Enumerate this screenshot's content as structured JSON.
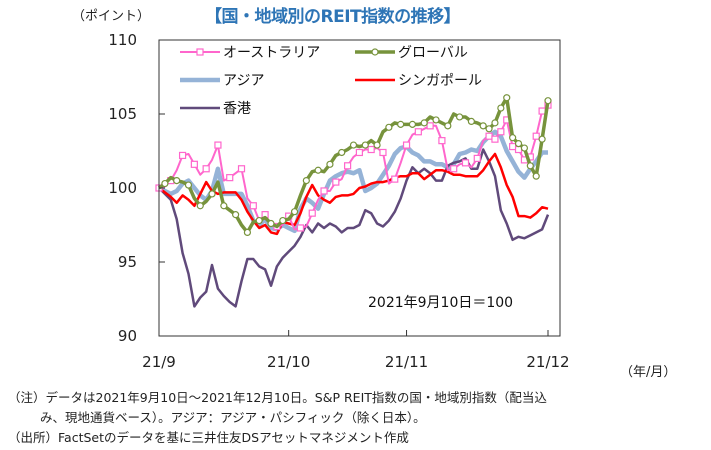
{
  "chart_data": {
    "type": "line",
    "title": "【国・地域別のREIT指数の推移】",
    "ylabel": "（ポイント）",
    "xlabel": "（年/月）",
    "ylim": [
      90,
      110
    ],
    "yticks": [
      90,
      95,
      100,
      105,
      110
    ],
    "ytick_labels": [
      "90",
      "95",
      "100",
      "105",
      "110"
    ],
    "xtick_labels": [
      "21/9",
      "21/10",
      "21/11",
      "21/12"
    ],
    "xtick_index": [
      0,
      22,
      42,
      66
    ],
    "n_points": 67,
    "annotation": "2021年9月10日＝100",
    "legend": "top-left inside",
    "grid": false,
    "series": [
      {
        "name": "オーストラリア",
        "color": "#ff66cc",
        "marker": "square",
        "values": [
          100,
          100.1,
          100.5,
          101.2,
          102.2,
          102.3,
          101.6,
          100.9,
          101.3,
          101.9,
          102.9,
          100.5,
          100.7,
          101,
          101.3,
          99.3,
          98.8,
          97.8,
          98.2,
          97.5,
          97.4,
          97.5,
          98.1,
          97.2,
          97.3,
          97.4,
          98.3,
          99.2,
          99.8,
          99.8,
          100.4,
          100.6,
          101.5,
          102.1,
          102.4,
          102.6,
          102.6,
          102.7,
          102.4,
          100.3,
          100.6,
          101.7,
          102.9,
          103.6,
          103.8,
          104.0,
          104.2,
          104.2,
          103.2,
          101.2,
          101.3,
          101.6,
          101.7,
          101.4,
          102,
          103.2,
          103.5,
          103.3,
          103.8,
          104.6,
          102.8,
          102.6,
          101.9,
          102.1,
          103.5,
          105.2,
          105.6
        ]
      },
      {
        "name": "グローバル",
        "color": "#77933c",
        "marker": "circle",
        "values": [
          100,
          100.3,
          100.7,
          100.5,
          100.4,
          100.2,
          99.3,
          98.8,
          99.1,
          99.6,
          100.4,
          98.8,
          98.5,
          98.2,
          97.5,
          97.0,
          97.7,
          97.8,
          98,
          97.6,
          97.4,
          97.8,
          97.9,
          98.4,
          99.5,
          100.5,
          101.1,
          101.2,
          101.1,
          101.6,
          102.2,
          102.4,
          102.6,
          102.9,
          102.8,
          102.9,
          103.2,
          102.9,
          103.8,
          104.1,
          104.4,
          104.3,
          104.3,
          104.3,
          104.3,
          104.4,
          104.8,
          104.6,
          104.4,
          104.2,
          105,
          104.8,
          104.8,
          104.5,
          104.4,
          104.2,
          104,
          104.4,
          105.4,
          106.1,
          103.4,
          103.0,
          102.7,
          101.5,
          100.8,
          103.3,
          105.9
        ]
      },
      {
        "name": "アジア",
        "color": "#95b3d7",
        "marker": "none",
        "values": [
          100,
          99.8,
          99.6,
          99.8,
          100.3,
          100.5,
          100.0,
          99.5,
          99.2,
          99.8,
          101.3,
          99.6,
          99.6,
          99.6,
          99.6,
          98.8,
          97.8,
          97.5,
          97.9,
          97.3,
          97.2,
          97.5,
          97.3,
          97.1,
          98.6,
          99.3,
          99.0,
          98.6,
          99.6,
          100.5,
          100.8,
          101.0,
          101.1,
          101.0,
          101.2,
          99.8,
          100.0,
          100.3,
          100.9,
          101.5,
          102.3,
          102.7,
          102.8,
          102.4,
          102.2,
          101.8,
          101.8,
          101.6,
          101.6,
          101.4,
          101.6,
          102.3,
          102.4,
          102.6,
          102.5,
          103.1,
          103.5,
          103.8,
          103.5,
          102.5,
          101.8,
          101.1,
          100.7,
          101.3,
          101.8,
          102.4,
          102.4
        ]
      },
      {
        "name": "シンガポール",
        "color": "#ff0000",
        "marker": "none",
        "values": [
          100,
          99.7,
          99.4,
          99.0,
          99.5,
          99.2,
          98.8,
          99.6,
          100.4,
          99.8,
          99.6,
          99.7,
          99.7,
          99.7,
          99.2,
          98.4,
          97.8,
          97.3,
          97.5,
          97.0,
          96.9,
          97.7,
          97.6,
          97.5,
          98.3,
          99.4,
          100.2,
          99.5,
          99.2,
          99.0,
          99.4,
          99.5,
          99.5,
          99.6,
          100.0,
          100.1,
          100.3,
          100.4,
          100.4,
          100.5,
          100.7,
          100.8,
          100.8,
          101.0,
          101.0,
          100.6,
          100.9,
          101.2,
          101.2,
          101.1,
          100.9,
          100.9,
          100.8,
          100.8,
          100.8,
          101.2,
          101.8,
          102.3,
          101.4,
          100.2,
          99.4,
          98.1,
          98.1,
          98.0,
          98.3,
          98.7,
          98.6
        ]
      },
      {
        "name": "香港",
        "color": "#604a7b",
        "marker": "none",
        "values": [
          100,
          99.6,
          99.2,
          97.9,
          95.6,
          94.2,
          92.0,
          92.6,
          93.0,
          94.8,
          93.2,
          92.7,
          92.3,
          92.0,
          93.7,
          95.2,
          95.2,
          94.7,
          94.5,
          93.4,
          94.7,
          95.3,
          95.7,
          96.1,
          96.7,
          97.5,
          97.0,
          97.6,
          97.3,
          97.6,
          97.4,
          97.0,
          97.3,
          97.3,
          97.5,
          98.5,
          98.3,
          97.6,
          97.4,
          97.8,
          98.4,
          99.3,
          100.5,
          101.4,
          101.0,
          101.3,
          101.0,
          100.5,
          100.5,
          101.5,
          101.7,
          101.8,
          102.0,
          101.3,
          101.3,
          102.6,
          101.8,
          100.8,
          98.5,
          97.6,
          96.5,
          96.7,
          96.6,
          96.8,
          97.0,
          97.2,
          98.2
        ]
      }
    ]
  },
  "notes": [
    "（注）データは2021年9月10日～2021年12月10日。S&P  REIT指数の国・地域別指数（配当込",
    "み、現地通貨ベース）。アジア：アジア・パシフィック（除く日本）。",
    "（出所）FactSetのデータを基に三井住友DSアセットマネジメント作成"
  ]
}
